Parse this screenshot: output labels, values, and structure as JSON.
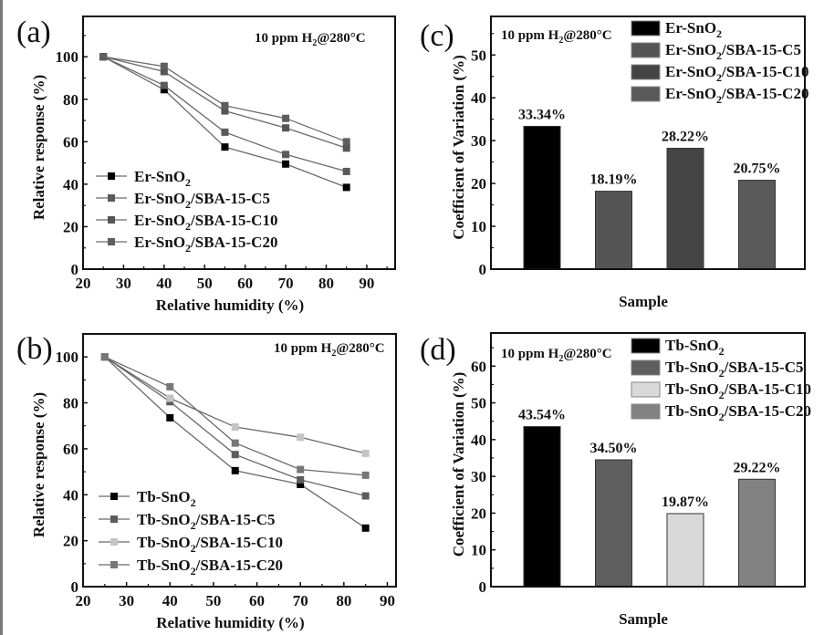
{
  "figure": {
    "panels": [
      "(a)",
      "(b)",
      "(c)",
      "(d)"
    ]
  },
  "chart_data": [
    {
      "id": "a",
      "type": "line",
      "panel_label": "(a)",
      "annotation": "10 ppm H2@280°C",
      "xlabel": "Relative humidity (%)",
      "ylabel": "Relative response (%)",
      "xlim": [
        20,
        97
      ],
      "ylim": [
        0,
        119
      ],
      "xticks": [
        20,
        30,
        40,
        50,
        60,
        70,
        80,
        90
      ],
      "yticks": [
        0,
        20,
        40,
        60,
        80,
        100
      ],
      "grid": false,
      "legend_position": "bottom-left",
      "x": [
        25,
        40,
        55,
        70,
        85
      ],
      "series": [
        {
          "name": "Er-SnO2",
          "label_main": "Er-SnO",
          "label_sub": "2",
          "label_rest": "",
          "color": "#000000",
          "values": [
            100,
            84.5,
            57.5,
            49.5,
            38.5
          ]
        },
        {
          "name": "Er-SnO2/SBA-15-C5",
          "label_main": "Er-SnO",
          "label_sub": "2",
          "label_rest": "/SBA-15-C5",
          "color": "#5a5a5a",
          "values": [
            100,
            86.5,
            64.5,
            54,
            46
          ]
        },
        {
          "name": "Er-SnO2/SBA-15-C10",
          "label_main": "Er-SnO",
          "label_sub": "2",
          "label_rest": "/SBA-15-C10",
          "color": "#555555",
          "values": [
            100,
            93,
            74.5,
            66.5,
            57
          ]
        },
        {
          "name": "Er-SnO2/SBA-15-C20",
          "label_main": "Er-SnO",
          "label_sub": "2",
          "label_rest": "/SBA-15-C20",
          "color": "#5e5e5e",
          "values": [
            100,
            95.5,
            77,
            71,
            60
          ]
        }
      ]
    },
    {
      "id": "b",
      "type": "line",
      "panel_label": "(b)",
      "annotation": "10 ppm H2@280°C",
      "xlabel": "Relative humidity (%)",
      "ylabel": "Relative response (%)",
      "xlim": [
        20,
        92
      ],
      "ylim": [
        0,
        110
      ],
      "xticks": [
        20,
        30,
        40,
        50,
        60,
        70,
        80,
        90
      ],
      "yticks": [
        0,
        20,
        40,
        60,
        80,
        100
      ],
      "grid": false,
      "legend_position": "bottom-left",
      "x": [
        25,
        40,
        55,
        70,
        85
      ],
      "series": [
        {
          "name": "Tb-SnO2",
          "label_main": "Tb-SnO",
          "label_sub": "2",
          "label_rest": "",
          "color": "#000000",
          "values": [
            100,
            73.5,
            50.5,
            44.5,
            25.5
          ]
        },
        {
          "name": "Tb-SnO2/SBA-15-C5",
          "label_main": "Tb-SnO",
          "label_sub": "2",
          "label_rest": "/SBA-15-C5",
          "color": "#5c5c5c",
          "values": [
            100,
            80.5,
            57.5,
            46.5,
            39.5
          ]
        },
        {
          "name": "Tb-SnO2/SBA-15-C10",
          "label_main": "Tb-SnO",
          "label_sub": "2",
          "label_rest": "/SBA-15-C10",
          "color": "#c4c4c4",
          "values": [
            100,
            82,
            69.5,
            65,
            58
          ]
        },
        {
          "name": "Tb-SnO2/SBA-15-C20",
          "label_main": "Tb-SnO",
          "label_sub": "2",
          "label_rest": "/SBA-15-C20",
          "color": "#777777",
          "values": [
            100,
            87,
            62.5,
            51,
            48.5
          ]
        }
      ]
    },
    {
      "id": "c",
      "type": "bar",
      "panel_label": "(c)",
      "annotation": "10 ppm H2@280°C",
      "xlabel": "Sample",
      "ylabel": "Coefficient of Variation (%)",
      "ylim": [
        0,
        59
      ],
      "yticks": [
        0,
        10,
        20,
        30,
        40,
        50
      ],
      "grid": false,
      "legend_position": "top-right",
      "categories": [
        "Er-SnO2",
        "Er-SnO2/SBA-15-C5",
        "Er-SnO2/SBA-15-C10",
        "Er-SnO2/SBA-15-C20"
      ],
      "values": [
        33.34,
        18.19,
        28.22,
        20.75
      ],
      "bar_labels": [
        "33.34%",
        "18.19%",
        "28.22%",
        "20.75%"
      ],
      "legend": [
        {
          "label_main": "Er-SnO",
          "label_sub": "2",
          "label_rest": "",
          "color": "#000000"
        },
        {
          "label_main": "Er-SnO",
          "label_sub": "2",
          "label_rest": "/SBA-15-C5",
          "color": "#555555"
        },
        {
          "label_main": "Er-SnO",
          "label_sub": "2",
          "label_rest": "/SBA-15-C10",
          "color": "#444444"
        },
        {
          "label_main": "Er-SnO",
          "label_sub": "2",
          "label_rest": "/SBA-15-C20",
          "color": "#595959"
        }
      ]
    },
    {
      "id": "d",
      "type": "bar",
      "panel_label": "(d)",
      "annotation": "10 ppm H2@280°C",
      "xlabel": "Sample",
      "ylabel": "Coefficient of Variation (%)",
      "ylim": [
        0,
        69
      ],
      "yticks": [
        0,
        10,
        20,
        30,
        40,
        50,
        60
      ],
      "grid": false,
      "legend_position": "top-right",
      "categories": [
        "Tb-SnO2",
        "Tb-SnO2/SBA-15-C5",
        "Tb-SnO2/SBA-15-C10",
        "Tb-SnO2/SBA-15-C20"
      ],
      "values": [
        43.54,
        34.5,
        19.87,
        29.22
      ],
      "bar_labels": [
        "43.54%",
        "34.50%",
        "19.87%",
        "29.22%"
      ],
      "legend": [
        {
          "label_main": "Tb-SnO",
          "label_sub": "2",
          "label_rest": "",
          "color": "#000000"
        },
        {
          "label_main": "Tb-SnO",
          "label_sub": "2",
          "label_rest": "/SBA-15-C5",
          "color": "#5e5e5e"
        },
        {
          "label_main": "Tb-SnO",
          "label_sub": "2",
          "label_rest": "/SBA-15-C10",
          "color": "#d9d9d9"
        },
        {
          "label_main": "Tb-SnO",
          "label_sub": "2",
          "label_rest": "/SBA-15-C20",
          "color": "#828282"
        }
      ]
    }
  ]
}
